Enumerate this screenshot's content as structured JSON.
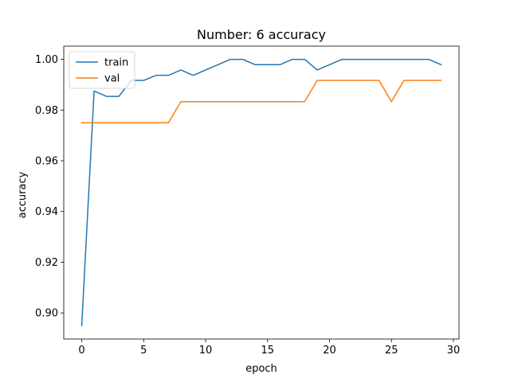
{
  "chart_data": {
    "type": "line",
    "title": "Number: 6 accuracy",
    "xlabel": "epoch",
    "ylabel": "accuracy",
    "xlim": [
      -1.45,
      30.45
    ],
    "ylim": [
      0.8897,
      1.0052
    ],
    "xticks": [
      0,
      5,
      10,
      15,
      20,
      25,
      30
    ],
    "yticks": [
      0.9,
      0.92,
      0.94,
      0.96,
      0.98,
      1.0
    ],
    "ytick_labels": [
      "0.90",
      "0.92",
      "0.94",
      "0.96",
      "0.98",
      "1.00"
    ],
    "grid": false,
    "legend_position": "upper left",
    "x": [
      0,
      1,
      2,
      3,
      4,
      5,
      6,
      7,
      8,
      9,
      10,
      11,
      12,
      13,
      14,
      15,
      16,
      17,
      18,
      19,
      20,
      21,
      22,
      23,
      24,
      25,
      26,
      27,
      28,
      29
    ],
    "series": [
      {
        "name": "train",
        "color": "#1f77b4",
        "values": [
          0.895,
          0.9875,
          0.9854,
          0.9854,
          0.9917,
          0.9917,
          0.9937,
          0.9937,
          0.9958,
          0.9937,
          0.9958,
          0.9979,
          1.0,
          1.0,
          0.9979,
          0.9979,
          0.9979,
          1.0,
          1.0,
          0.9958,
          0.9979,
          1.0,
          1.0,
          1.0,
          1.0,
          1.0,
          1.0,
          1.0,
          1.0,
          0.9979
        ]
      },
      {
        "name": "val",
        "color": "#ff7f0e",
        "values": [
          0.975,
          0.975,
          0.975,
          0.975,
          0.975,
          0.975,
          0.975,
          0.975,
          0.9833,
          0.9833,
          0.9833,
          0.9833,
          0.9833,
          0.9833,
          0.9833,
          0.9833,
          0.9833,
          0.9833,
          0.9833,
          0.9917,
          0.9917,
          0.9917,
          0.9917,
          0.9917,
          0.9917,
          0.9833,
          0.9917,
          0.9917,
          0.9917,
          0.9917
        ]
      }
    ]
  }
}
